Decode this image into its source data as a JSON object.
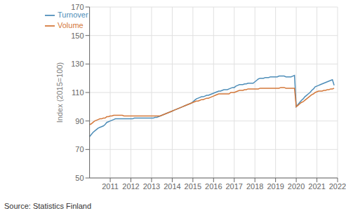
{
  "chart_data": {
    "type": "line",
    "ylabel": "Index (2015=100)",
    "annotations": [
      "Source: Statistics Finland"
    ],
    "xlim": [
      2010.0,
      2022.0
    ],
    "xticks": [
      2011,
      2012,
      2013,
      2014,
      2015,
      2016,
      2017,
      2018,
      2019,
      2020,
      2021,
      2022
    ],
    "ylim": [
      50,
      170
    ],
    "yticks": [
      50,
      70,
      90,
      110,
      130,
      150,
      170
    ],
    "grid": true,
    "legend": "upper left",
    "x": [
      2010.0,
      2010.0833333333333,
      2010.1666666666667,
      2010.25,
      2010.3333333333333,
      2010.4166666666667,
      2010.5,
      2010.5833333333333,
      2010.6666666666667,
      2010.75,
      2010.8333333333333,
      2010.9166666666667,
      2011.0,
      2011.0833333333333,
      2011.1666666666667,
      2011.25,
      2011.3333333333333,
      2011.4166666666667,
      2011.5,
      2011.5833333333333,
      2011.6666666666667,
      2011.75,
      2011.8333333333333,
      2011.9166666666667,
      2012.0,
      2012.0833333333333,
      2012.1666666666667,
      2012.25,
      2012.3333333333333,
      2012.4166666666667,
      2012.5,
      2012.5833333333333,
      2012.6666666666667,
      2012.75,
      2012.8333333333333,
      2012.9166666666667,
      2013.0,
      2013.0833333333333,
      2013.1666666666667,
      2013.25,
      2013.3333333333333,
      2013.4166666666667,
      2013.5,
      2013.5833333333333,
      2013.6666666666667,
      2013.75,
      2013.8333333333333,
      2013.9166666666667,
      2014.0,
      2014.0833333333333,
      2014.1666666666667,
      2014.25,
      2014.3333333333333,
      2014.4166666666667,
      2014.5,
      2014.5833333333333,
      2014.6666666666667,
      2014.75,
      2014.8333333333333,
      2014.9166666666667,
      2015.0,
      2015.0833333333333,
      2015.1666666666667,
      2015.25,
      2015.3333333333333,
      2015.4166666666667,
      2015.5,
      2015.5833333333333,
      2015.6666666666667,
      2015.75,
      2015.8333333333333,
      2015.9166666666667,
      2016.0,
      2016.0833333333333,
      2016.1666666666667,
      2016.25,
      2016.3333333333333,
      2016.4166666666667,
      2016.5,
      2016.5833333333333,
      2016.6666666666667,
      2016.75,
      2016.8333333333333,
      2016.9166666666667,
      2017.0,
      2017.0833333333333,
      2017.1666666666667,
      2017.25,
      2017.3333333333333,
      2017.4166666666667,
      2017.5,
      2017.5833333333333,
      2017.6666666666667,
      2017.75,
      2017.8333333333333,
      2017.9166666666667,
      2018.0,
      2018.0833333333333,
      2018.1666666666667,
      2018.25,
      2018.3333333333333,
      2018.4166666666667,
      2018.5,
      2018.5833333333333,
      2018.6666666666667,
      2018.75,
      2018.8333333333333,
      2018.9166666666667,
      2019.0,
      2019.0833333333333,
      2019.1666666666667,
      2019.25,
      2019.3333333333333,
      2019.4166666666667,
      2019.5,
      2019.5833333333333,
      2019.6666666666667,
      2019.75,
      2019.8333333333333,
      2019.9166666666667,
      2020.0,
      2020.0833333333333,
      2020.1666666666667,
      2020.25,
      2020.3333333333333,
      2020.4166666666667,
      2020.5,
      2020.5833333333333,
      2020.6666666666667,
      2020.75,
      2020.8333333333333,
      2020.9166666666667,
      2021.0,
      2021.0833333333333,
      2021.1666666666667,
      2021.25,
      2021.3333333333333,
      2021.4166666666667,
      2021.5,
      2021.5833333333333,
      2021.6666666666667,
      2021.75,
      2021.8333333333333
    ],
    "series": [
      {
        "name": "Turnover",
        "color": "#4d8db8",
        "values": [
          79.0,
          80.5,
          82.0,
          83.0,
          84.0,
          85.0,
          85.5,
          86.0,
          86.5,
          87.5,
          89.0,
          89.5,
          90.0,
          90.5,
          91.0,
          91.5,
          91.5,
          91.5,
          91.5,
          91.5,
          91.5,
          91.5,
          91.5,
          91.5,
          91.5,
          91.5,
          92.0,
          92.0,
          92.0,
          92.0,
          92.0,
          92.0,
          92.0,
          92.0,
          92.0,
          92.0,
          92.0,
          92.0,
          92.5,
          92.5,
          93.0,
          93.5,
          94.0,
          94.5,
          95.0,
          95.5,
          96.0,
          96.5,
          97.0,
          97.5,
          98.0,
          98.5,
          99.0,
          99.5,
          100.0,
          100.5,
          101.0,
          101.5,
          102.0,
          102.5,
          103.5,
          104.5,
          105.5,
          106.0,
          106.5,
          107.0,
          107.0,
          107.5,
          108.0,
          108.0,
          108.5,
          109.0,
          109.5,
          110.0,
          110.5,
          111.0,
          111.0,
          111.5,
          112.0,
          112.0,
          112.0,
          112.5,
          113.0,
          113.5,
          113.5,
          114.5,
          115.0,
          115.5,
          115.5,
          115.5,
          116.0,
          116.0,
          116.5,
          116.5,
          116.5,
          116.5,
          117.5,
          118.5,
          119.5,
          120.0,
          120.0,
          120.0,
          120.5,
          120.5,
          120.5,
          121.0,
          121.0,
          121.0,
          121.0,
          121.0,
          121.5,
          121.5,
          121.5,
          121.5,
          121.0,
          121.0,
          121.0,
          121.0,
          121.5,
          122.0,
          100.0,
          101.5,
          103.0,
          104.5,
          105.5,
          107.0,
          108.0,
          109.0,
          110.0,
          111.5,
          112.5,
          114.0,
          114.5,
          115.0,
          115.5,
          116.0,
          116.5,
          117.0,
          117.5,
          118.0,
          118.5,
          119.0,
          115.0
        ]
      },
      {
        "name": "Volume",
        "color": "#d4783a",
        "values": [
          87.5,
          88.0,
          89.0,
          90.0,
          90.5,
          91.0,
          91.5,
          91.5,
          92.0,
          92.0,
          93.0,
          93.0,
          93.5,
          93.5,
          94.0,
          94.0,
          94.0,
          94.0,
          94.0,
          94.0,
          93.5,
          93.5,
          93.5,
          93.5,
          93.5,
          93.5,
          93.5,
          93.5,
          93.5,
          93.5,
          93.5,
          93.5,
          93.5,
          93.5,
          93.5,
          93.5,
          93.5,
          93.5,
          93.5,
          93.5,
          93.5,
          93.5,
          94.0,
          94.5,
          95.0,
          95.5,
          96.0,
          96.5,
          97.0,
          97.5,
          98.0,
          98.5,
          99.0,
          99.5,
          100.0,
          100.5,
          101.0,
          101.5,
          102.0,
          102.5,
          103.0,
          103.5,
          104.0,
          104.0,
          104.5,
          105.0,
          105.0,
          105.5,
          106.0,
          106.0,
          106.5,
          107.0,
          107.5,
          108.0,
          108.5,
          109.0,
          109.0,
          109.0,
          109.0,
          109.0,
          109.0,
          109.0,
          110.0,
          110.0,
          110.0,
          110.5,
          111.0,
          111.5,
          111.5,
          111.5,
          112.0,
          112.0,
          112.5,
          112.5,
          112.5,
          112.5,
          112.5,
          112.5,
          112.5,
          113.0,
          113.0,
          113.0,
          113.0,
          113.0,
          113.0,
          113.0,
          113.0,
          113.0,
          113.0,
          113.0,
          113.0,
          113.5,
          113.5,
          113.5,
          113.0,
          113.0,
          113.0,
          113.0,
          113.0,
          113.0,
          100.0,
          101.0,
          102.0,
          103.0,
          103.5,
          104.5,
          105.5,
          106.5,
          107.5,
          108.5,
          109.0,
          110.0,
          110.5,
          111.0,
          111.0,
          111.0,
          111.5,
          111.5,
          112.0,
          112.0,
          112.5,
          112.5,
          113.0
        ]
      }
    ]
  }
}
